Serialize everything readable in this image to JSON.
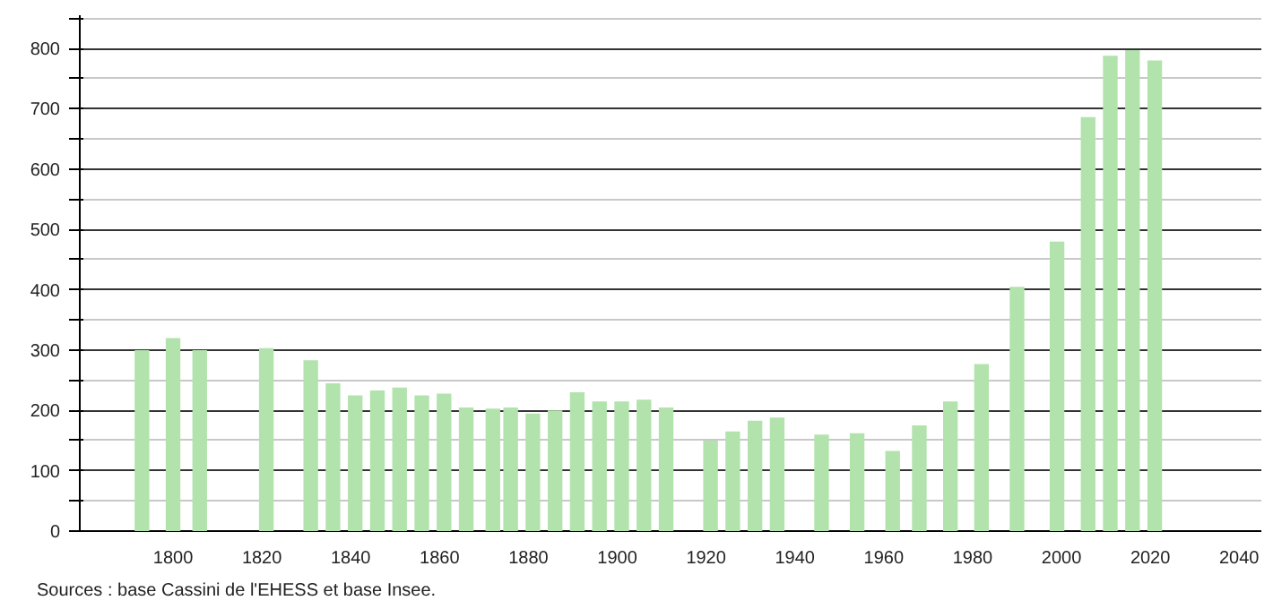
{
  "chart_data": {
    "type": "bar",
    "x": [
      1793,
      1800,
      1806,
      1821,
      1831,
      1836,
      1841,
      1846,
      1851,
      1856,
      1861,
      1866,
      1872,
      1876,
      1881,
      1886,
      1891,
      1896,
      1901,
      1906,
      1911,
      1921,
      1926,
      1931,
      1936,
      1946,
      1954,
      1962,
      1968,
      1975,
      1982,
      1990,
      1999,
      2006,
      2011,
      2016,
      2021
    ],
    "values": [
      300,
      320,
      300,
      303,
      283,
      245,
      225,
      233,
      238,
      225,
      228,
      205,
      203,
      205,
      195,
      200,
      230,
      215,
      215,
      218,
      205,
      150,
      165,
      183,
      188,
      160,
      162,
      133,
      175,
      215,
      277,
      405,
      480,
      686,
      788,
      797,
      780
    ],
    "color": "#b2e3ad",
    "xlim": [
      1779,
      2045
    ],
    "xticks": [
      1800,
      1820,
      1840,
      1860,
      1880,
      1900,
      1920,
      1940,
      1960,
      1980,
      2000,
      2020,
      2040
    ],
    "ylim": [
      0,
      855
    ],
    "yticks": [
      0,
      {
        "value": 50,
        "label": null
      },
      100,
      {
        "value": 150,
        "label": null
      },
      200,
      {
        "value": 250,
        "label": null
      },
      300,
      {
        "value": 350,
        "label": null
      },
      400,
      {
        "value": 450,
        "label": null
      },
      500,
      {
        "value": 550,
        "label": null
      },
      600,
      {
        "value": 650,
        "label": null
      },
      700,
      {
        "value": 750,
        "label": null
      },
      800,
      {
        "value": 850,
        "label": null
      }
    ],
    "grid": "y",
    "annotations": [
      "Sources : base Cassini de l'EHESS et base Insee."
    ]
  }
}
